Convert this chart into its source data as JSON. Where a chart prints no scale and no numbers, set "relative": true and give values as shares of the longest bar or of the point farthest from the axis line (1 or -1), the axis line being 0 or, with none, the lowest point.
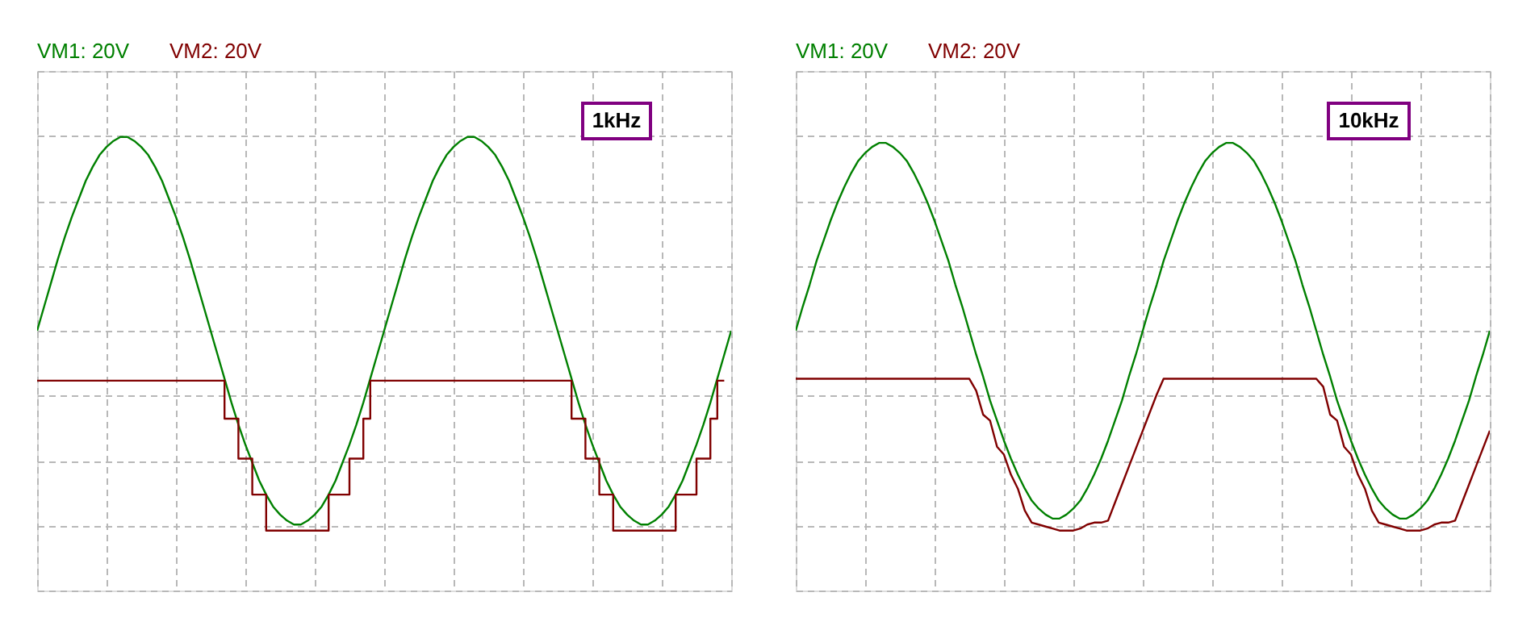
{
  "chart_data": [
    {
      "type": "line",
      "relative": true,
      "categories": [
        null,
        null,
        null,
        null,
        null,
        null,
        null,
        null,
        null,
        null,
        null,
        null,
        null,
        null,
        null,
        null,
        null,
        null,
        null,
        null,
        null,
        null,
        null,
        null,
        null,
        null,
        null,
        null,
        null,
        null,
        null,
        null,
        null,
        null,
        null,
        null,
        null,
        null,
        null,
        null,
        null,
        null,
        null,
        null,
        null,
        null,
        null,
        null,
        null,
        null,
        null,
        null,
        null,
        null,
        null,
        null,
        null,
        null,
        null,
        null,
        null,
        null,
        null,
        null,
        null,
        null,
        null,
        null,
        null,
        null,
        null,
        null,
        null,
        null,
        null,
        null,
        null,
        null,
        null,
        null,
        null,
        null,
        null,
        null,
        null,
        null,
        null,
        null,
        null,
        null,
        null,
        null,
        null,
        null,
        null,
        null,
        null,
        null,
        null,
        null,
        null
      ],
      "series": [
        {
          "name": "VM1: 20V",
          "color": "#008000",
          "type": "line",
          "values": [
            0,
            0.12,
            0.24,
            0.36,
            0.47,
            0.57,
            0.66,
            0.75,
            0.82,
            0.88,
            0.92,
            0.95,
            0.97,
            0.97,
            0.95,
            0.92,
            0.88,
            0.82,
            0.75,
            0.66,
            0.57,
            0.47,
            0.36,
            0.24,
            0.12,
            0,
            -0.12,
            -0.24,
            -0.36,
            -0.47,
            -0.57,
            -0.66,
            -0.75,
            -0.82,
            -0.88,
            -0.92,
            -0.95,
            -0.97,
            -0.97,
            -0.95,
            -0.92,
            -0.88,
            -0.82,
            -0.75,
            -0.66,
            -0.57,
            -0.47,
            -0.36,
            -0.24,
            -0.12,
            0,
            0.12,
            0.24,
            0.36,
            0.47,
            0.57,
            0.66,
            0.75,
            0.82,
            0.88,
            0.92,
            0.95,
            0.97,
            0.97,
            0.95,
            0.92,
            0.88,
            0.82,
            0.75,
            0.66,
            0.57,
            0.47,
            0.36,
            0.24,
            0.12,
            0,
            -0.12,
            -0.24,
            -0.36,
            -0.47,
            -0.57,
            -0.66,
            -0.75,
            -0.82,
            -0.88,
            -0.92,
            -0.95,
            -0.97,
            -0.97,
            -0.95,
            -0.92,
            -0.88,
            -0.82,
            -0.75,
            -0.66,
            -0.57,
            -0.47,
            -0.36,
            -0.24,
            -0.12,
            0
          ]
        },
        {
          "name": "VM2: 20V",
          "color": "#800000",
          "type": "step",
          "values": [
            -0.25,
            -0.25,
            -0.25,
            -0.25,
            -0.25,
            -0.25,
            -0.25,
            -0.25,
            -0.25,
            -0.25,
            -0.25,
            -0.25,
            -0.25,
            -0.25,
            -0.25,
            -0.25,
            -0.25,
            -0.25,
            -0.25,
            -0.25,
            -0.25,
            -0.25,
            -0.25,
            -0.25,
            -0.25,
            -0.25,
            -0.25,
            -0.44,
            -0.44,
            -0.64,
            -0.64,
            -0.82,
            -0.82,
            -1,
            -1,
            -1,
            -1,
            -1,
            -1,
            -1,
            -1,
            -1,
            -0.82,
            -0.82,
            -0.82,
            -0.64,
            -0.64,
            -0.44,
            -0.25,
            -0.25,
            -0.25,
            -0.25,
            -0.25,
            -0.25,
            -0.25,
            -0.25,
            -0.25,
            -0.25,
            -0.25,
            -0.25,
            -0.25,
            -0.25,
            -0.25,
            -0.25,
            -0.25,
            -0.25,
            -0.25,
            -0.25,
            -0.25,
            -0.25,
            -0.25,
            -0.25,
            -0.25,
            -0.25,
            -0.25,
            -0.25,
            -0.25,
            -0.44,
            -0.44,
            -0.64,
            -0.64,
            -0.82,
            -0.82,
            -1,
            -1,
            -1,
            -1,
            -1,
            -1,
            -1,
            -1,
            -1,
            -0.82,
            -0.82,
            -0.82,
            -0.64,
            -0.64,
            -0.44,
            -0.25,
            -0.25,
            null
          ]
        }
      ],
      "annotations": [
        "1kHz"
      ],
      "grid": true,
      "legend": "top left",
      "tick_labels": false,
      "line_style": "solid",
      "marker": "none"
    },
    {
      "type": "line",
      "relative": true,
      "categories": [
        null,
        null,
        null,
        null,
        null,
        null,
        null,
        null,
        null,
        null,
        null,
        null,
        null,
        null,
        null,
        null,
        null,
        null,
        null,
        null,
        null,
        null,
        null,
        null,
        null,
        null,
        null,
        null,
        null,
        null,
        null,
        null,
        null,
        null,
        null,
        null,
        null,
        null,
        null,
        null,
        null,
        null,
        null,
        null,
        null,
        null,
        null,
        null,
        null,
        null,
        null,
        null,
        null,
        null,
        null,
        null,
        null,
        null,
        null,
        null,
        null,
        null,
        null,
        null,
        null,
        null,
        null,
        null,
        null,
        null,
        null,
        null,
        null,
        null,
        null,
        null,
        null,
        null,
        null,
        null,
        null,
        null,
        null,
        null,
        null,
        null,
        null,
        null,
        null,
        null,
        null,
        null,
        null,
        null,
        null,
        null,
        null,
        null,
        null,
        null,
        null
      ],
      "series": [
        {
          "name": "VM1: 20V",
          "color": "#008000",
          "type": "line",
          "values": [
            0,
            0.12,
            0.23,
            0.35,
            0.45,
            0.55,
            0.64,
            0.72,
            0.79,
            0.85,
            0.89,
            0.92,
            0.94,
            0.94,
            0.92,
            0.89,
            0.85,
            0.79,
            0.72,
            0.64,
            0.55,
            0.45,
            0.35,
            0.23,
            0.12,
            0,
            -0.12,
            -0.23,
            -0.35,
            -0.45,
            -0.55,
            -0.64,
            -0.72,
            -0.79,
            -0.85,
            -0.89,
            -0.92,
            -0.94,
            -0.94,
            -0.92,
            -0.89,
            -0.85,
            -0.79,
            -0.72,
            -0.64,
            -0.55,
            -0.45,
            -0.35,
            -0.23,
            -0.12,
            0,
            0.12,
            0.23,
            0.35,
            0.45,
            0.55,
            0.64,
            0.72,
            0.79,
            0.85,
            0.89,
            0.92,
            0.94,
            0.94,
            0.92,
            0.89,
            0.85,
            0.79,
            0.72,
            0.64,
            0.55,
            0.45,
            0.35,
            0.23,
            0.12,
            0,
            -0.12,
            -0.23,
            -0.35,
            -0.45,
            -0.55,
            -0.64,
            -0.72,
            -0.79,
            -0.85,
            -0.89,
            -0.92,
            -0.94,
            -0.94,
            -0.92,
            -0.89,
            -0.85,
            -0.79,
            -0.72,
            -0.64,
            -0.55,
            -0.45,
            -0.35,
            -0.23,
            -0.12,
            0
          ]
        },
        {
          "name": "VM2: 20V",
          "color": "#800000",
          "type": "line",
          "values": [
            -0.24,
            -0.24,
            -0.24,
            -0.24,
            -0.24,
            -0.24,
            -0.24,
            -0.24,
            -0.24,
            -0.24,
            -0.24,
            -0.24,
            -0.24,
            -0.24,
            -0.24,
            -0.24,
            -0.24,
            -0.24,
            -0.24,
            -0.24,
            -0.24,
            -0.24,
            -0.24,
            -0.24,
            -0.24,
            -0.24,
            -0.3,
            -0.42,
            -0.45,
            -0.58,
            -0.62,
            -0.72,
            -0.79,
            -0.9,
            -0.96,
            -0.97,
            -0.98,
            -0.99,
            -1,
            -1,
            -1,
            -0.99,
            -0.97,
            -0.96,
            -0.96,
            -0.95,
            -0.86,
            -0.77,
            -0.68,
            -0.59,
            -0.5,
            -0.41,
            -0.32,
            -0.24,
            -0.24,
            -0.24,
            -0.24,
            -0.24,
            -0.24,
            -0.24,
            -0.24,
            -0.24,
            -0.24,
            -0.24,
            -0.24,
            -0.24,
            -0.24,
            -0.24,
            -0.24,
            -0.24,
            -0.24,
            -0.24,
            -0.24,
            -0.24,
            -0.24,
            -0.24,
            -0.28,
            -0.42,
            -0.45,
            -0.58,
            -0.62,
            -0.72,
            -0.79,
            -0.9,
            -0.96,
            -0.97,
            -0.98,
            -0.99,
            -1,
            -1,
            -1,
            -0.99,
            -0.97,
            -0.96,
            -0.96,
            -0.95,
            -0.86,
            -0.77,
            -0.68,
            -0.59,
            -0.5
          ]
        }
      ],
      "annotations": [
        "10kHz"
      ],
      "grid": true,
      "legend": "top left",
      "tick_labels": false,
      "line_style": "solid",
      "marker": "none"
    }
  ]
}
